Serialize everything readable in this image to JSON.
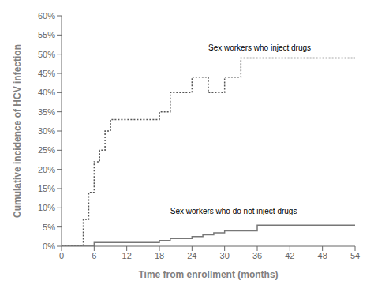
{
  "chart_data": {
    "type": "step",
    "xlabel": "Time from enrollment (months)",
    "ylabel": "Cumulative incidence of HCV infection",
    "xlim": [
      0,
      54
    ],
    "ylim": [
      0,
      0.6
    ],
    "xticks": [
      0,
      6,
      12,
      18,
      24,
      30,
      36,
      42,
      48,
      54
    ],
    "yticks": [
      {
        "value": 0.0,
        "label": "0%"
      },
      {
        "value": 0.05,
        "label": "5%"
      },
      {
        "value": 0.1,
        "label": "10%"
      },
      {
        "value": 0.15,
        "label": "15%"
      },
      {
        "value": 0.2,
        "label": "20%"
      },
      {
        "value": 0.25,
        "label": "25%"
      },
      {
        "value": 0.3,
        "label": "30%"
      },
      {
        "value": 0.35,
        "label": "35%"
      },
      {
        "value": 0.4,
        "label": "40%"
      },
      {
        "value": 0.45,
        "label": "45%"
      },
      {
        "value": 0.5,
        "label": "50%"
      },
      {
        "value": 0.55,
        "label": "55%"
      },
      {
        "value": 0.6,
        "label": "60%"
      }
    ],
    "series": [
      {
        "color": "#555555",
        "line_style": "dotted",
        "x": [
          0,
          3,
          4,
          5,
          6,
          7,
          8,
          9,
          10,
          12,
          18,
          20,
          22,
          24,
          27,
          30,
          33,
          36,
          54
        ],
        "values": [
          0,
          0,
          0.07,
          0.14,
          0.22,
          0.25,
          0.3,
          0.33,
          0.33,
          0.33,
          0.35,
          0.4,
          0.4,
          0.44,
          0.4,
          0.44,
          0.49,
          0.49,
          0.49
        ]
      },
      {
        "color": "#777777",
        "line_style": "solid",
        "x": [
          0,
          4,
          6,
          12,
          18,
          20,
          22,
          24,
          26,
          28,
          30,
          32,
          34,
          36,
          54
        ],
        "values": [
          0,
          0,
          0.01,
          0.01,
          0.015,
          0.02,
          0.02,
          0.025,
          0.03,
          0.035,
          0.04,
          0.04,
          0.04,
          0.055,
          0.055
        ]
      }
    ],
    "annotations": [
      {
        "text": "Sex workers who inject drugs",
        "x": 27,
        "y": 0.505
      },
      {
        "text": "Sex workers who do not inject drugs",
        "x": 20,
        "y": 0.08
      }
    ]
  }
}
